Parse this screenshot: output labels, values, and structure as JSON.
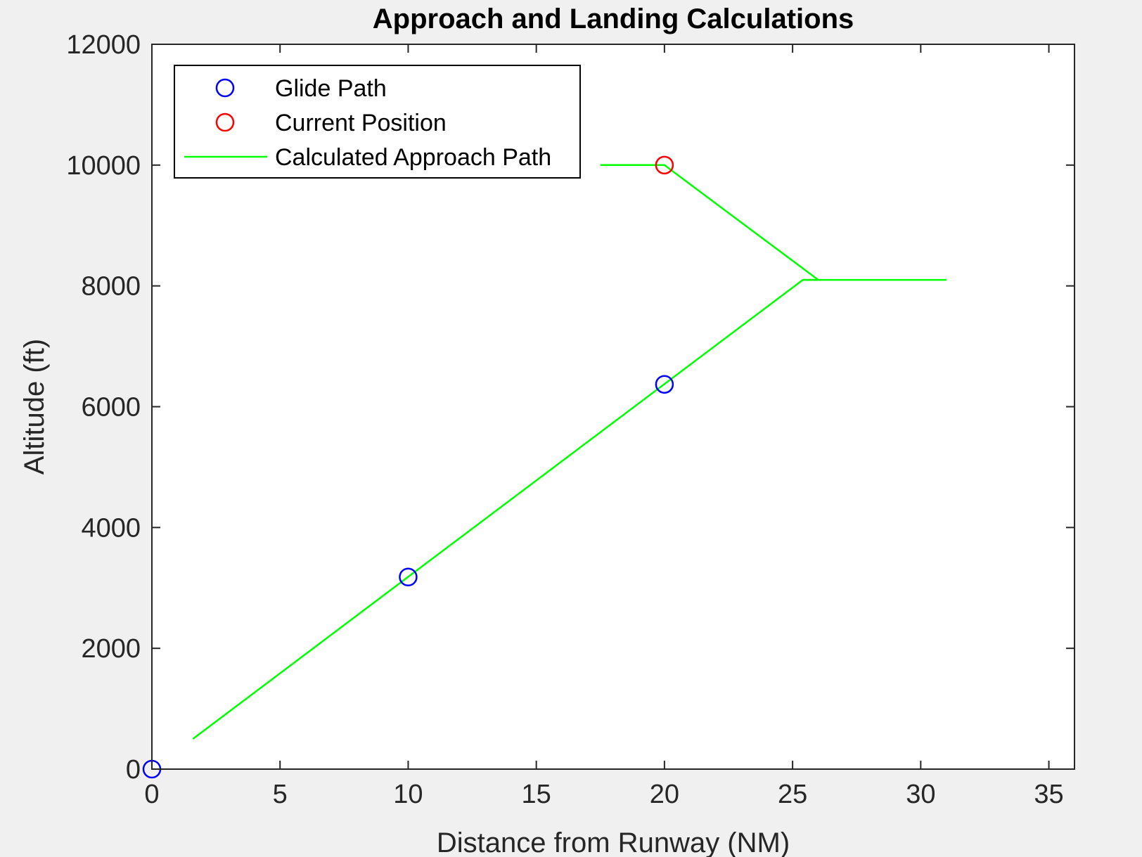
{
  "chart_data": {
    "type": "line",
    "title": "Approach and Landing Calculations",
    "xlabel": "Distance from Runway (NM)",
    "ylabel": "Altitude (ft)",
    "xlim": [
      0,
      36
    ],
    "ylim": [
      0,
      12000
    ],
    "x_ticks": [
      0,
      5,
      10,
      15,
      20,
      25,
      30,
      35
    ],
    "y_ticks": [
      0,
      2000,
      4000,
      6000,
      8000,
      10000,
      12000
    ],
    "grid": false,
    "legend_position": "top-left",
    "series": [
      {
        "name": "Glide Path",
        "type": "scatter",
        "marker": "circle",
        "color": "#0000ff",
        "x": [
          0,
          10,
          20
        ],
        "y": [
          0,
          3180,
          6370
        ]
      },
      {
        "name": "Current Position",
        "type": "scatter",
        "marker": "circle",
        "color": "#ff0000",
        "x": [
          20
        ],
        "y": [
          10000
        ]
      },
      {
        "name": "Calculated Approach Path",
        "type": "line",
        "color": "#00ff00",
        "segments": [
          {
            "x": [
              1.6,
              25.4,
              31.0
            ],
            "y": [
              500,
              8100,
              8100
            ]
          },
          {
            "x": [
              17.5,
              20.0,
              26.0,
              25.4
            ],
            "y": [
              10000,
              10000,
              8100,
              8100
            ]
          }
        ]
      }
    ]
  }
}
